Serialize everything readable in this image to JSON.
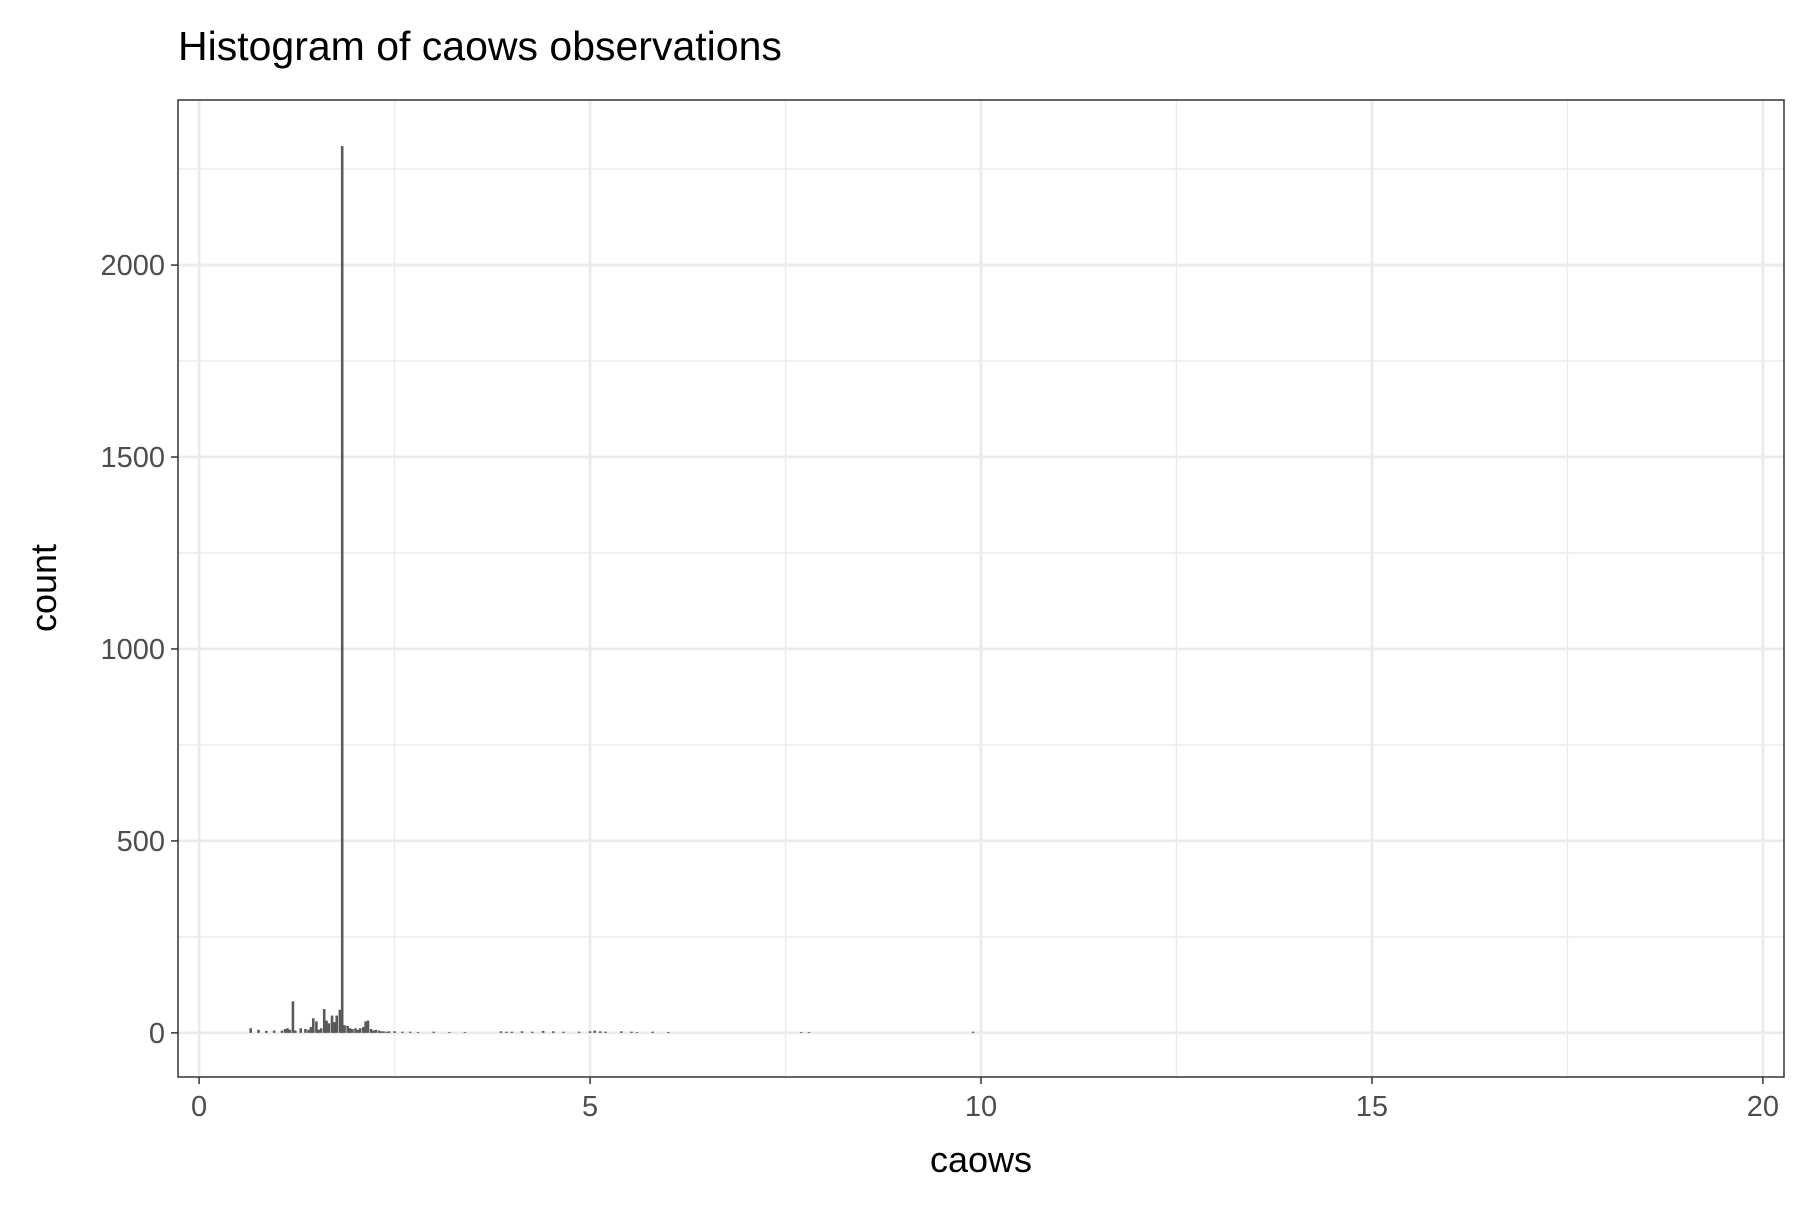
{
  "chart_data": {
    "type": "bar",
    "title": "Histogram of caows observations",
    "xlabel": "caows",
    "ylabel": "count",
    "xlim": [
      -0.27,
      20.27
    ],
    "ylim": [
      -115,
      2430
    ],
    "x_ticks": [
      0,
      5,
      10,
      15,
      20
    ],
    "x_tick_labels": [
      "0",
      "5",
      "10",
      "15",
      "20"
    ],
    "x_minor_ticks": [
      2.5,
      7.5,
      12.5,
      17.5
    ],
    "y_ticks": [
      0,
      500,
      1000,
      1500,
      2000
    ],
    "y_tick_labels": [
      "0",
      "500",
      "1000",
      "1500",
      "2000"
    ],
    "y_minor_ticks": [
      250,
      750,
      1250,
      1750,
      2250
    ],
    "grid": true,
    "bin_width": 0.033,
    "bar_fill": "#595959",
    "series": [
      {
        "x": [
          0.66,
          0.76,
          0.86,
          0.96,
          1.06,
          1.1,
          1.13,
          1.16,
          1.2,
          1.23,
          1.3,
          1.36,
          1.4,
          1.43,
          1.46,
          1.5,
          1.53,
          1.56,
          1.6,
          1.63,
          1.66,
          1.7,
          1.73,
          1.76,
          1.8,
          1.83,
          1.86,
          1.9,
          1.93,
          1.96,
          2.0,
          2.03,
          2.06,
          2.1,
          2.13,
          2.16,
          2.2,
          2.23,
          2.26,
          2.3,
          2.33,
          2.36,
          2.4,
          2.43,
          2.5,
          2.6,
          2.7,
          2.8,
          3.0,
          3.2,
          3.4,
          3.86,
          3.93,
          4.0,
          4.13,
          4.26,
          4.4,
          4.53,
          4.66,
          4.86,
          5.0,
          5.06,
          5.13,
          5.2,
          5.4,
          5.53,
          5.6,
          5.8,
          6.0,
          7.7,
          7.8,
          9.9
        ],
        "values": [
          12,
          8,
          5,
          6,
          6,
          10,
          12,
          8,
          82,
          6,
          12,
          10,
          8,
          15,
          38,
          30,
          8,
          12,
          62,
          32,
          25,
          45,
          28,
          45,
          60,
          2310,
          20,
          18,
          12,
          10,
          12,
          8,
          12,
          15,
          30,
          32,
          10,
          6,
          8,
          6,
          4,
          4,
          3,
          4,
          4,
          3,
          3,
          2,
          3,
          2,
          2,
          4,
          3,
          3,
          4,
          3,
          5,
          4,
          3,
          3,
          4,
          6,
          4,
          3,
          4,
          3,
          2,
          3,
          2,
          2,
          2,
          3
        ]
      }
    ]
  }
}
